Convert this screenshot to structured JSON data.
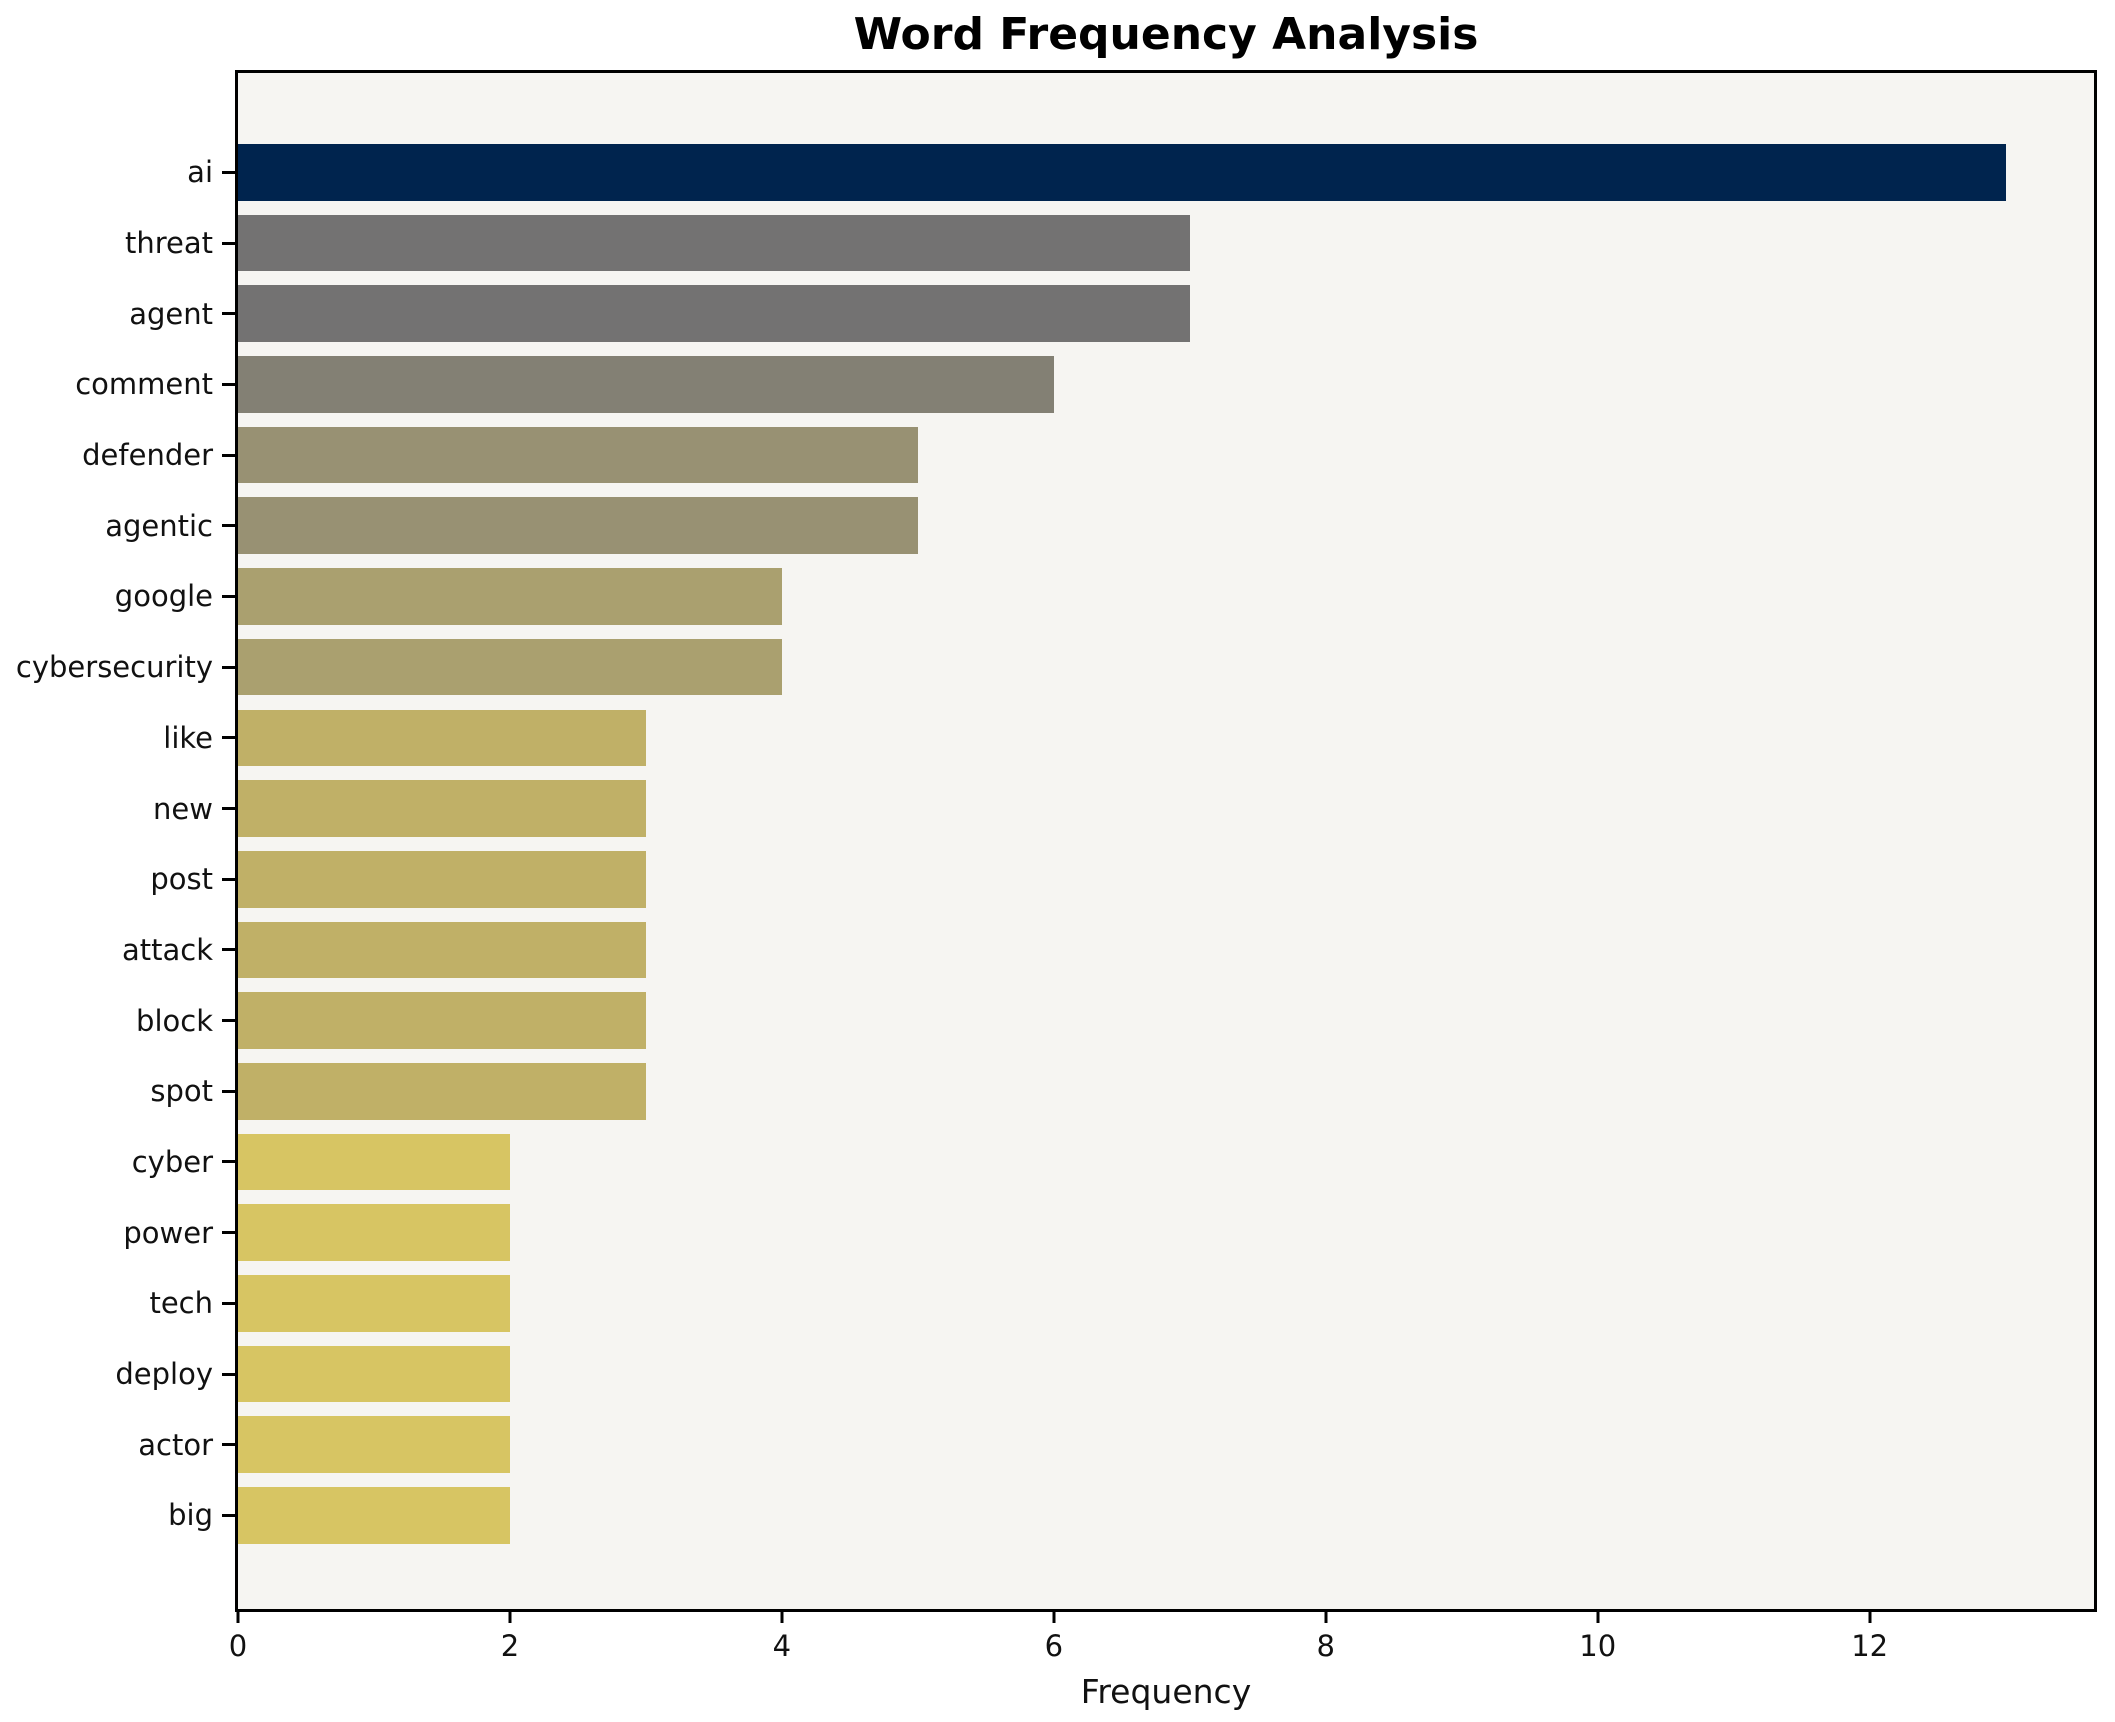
{
  "chart_data": {
    "type": "bar",
    "orientation": "horizontal",
    "title": "Word Frequency Analysis",
    "xlabel": "Frequency",
    "ylabel": "",
    "categories": [
      "ai",
      "threat",
      "agent",
      "comment",
      "defender",
      "agentic",
      "google",
      "cybersecurity",
      "like",
      "new",
      "post",
      "attack",
      "block",
      "spot",
      "cyber",
      "power",
      "tech",
      "deploy",
      "actor",
      "big"
    ],
    "values": [
      13,
      7,
      7,
      6,
      5,
      5,
      4,
      4,
      3,
      3,
      3,
      3,
      3,
      3,
      2,
      2,
      2,
      2,
      2,
      2
    ],
    "bar_colors": [
      "#00244e",
      "#737272",
      "#737272",
      "#838074",
      "#989173",
      "#989173",
      "#aaa06f",
      "#aaa06f",
      "#c0b067",
      "#c0b067",
      "#c0b067",
      "#c0b067",
      "#c0b067",
      "#c0b067",
      "#d7c563",
      "#d7c563",
      "#d7c563",
      "#d7c563",
      "#d7c563",
      "#d7c563"
    ],
    "x_ticks": [
      0,
      2,
      4,
      6,
      8,
      10,
      12
    ],
    "xlim": [
      0,
      13.65
    ],
    "grid": false,
    "legend": null
  },
  "colors": {
    "plot_background": "#f6f5f2",
    "figure_background": "#ffffff",
    "axis_line": "#000000",
    "text": "#111111"
  }
}
